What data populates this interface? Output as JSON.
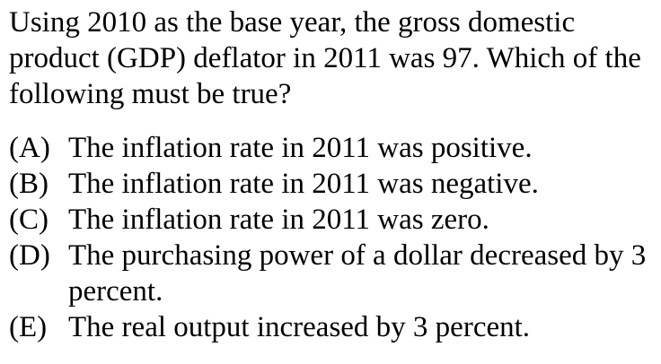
{
  "question": {
    "stem": "Using 2010 as the base year, the gross domestic product (GDP) deflator in 2011 was 97. Which of the following must be true?"
  },
  "options": [
    {
      "letter": "(A)",
      "text": "The inflation rate in 2011 was positive."
    },
    {
      "letter": "(B)",
      "text": "The inflation rate in 2011 was negative."
    },
    {
      "letter": "(C)",
      "text": "The inflation rate in 2011 was zero."
    },
    {
      "letter": "(D)",
      "text": "The purchasing power of a dollar decreased by 3 percent."
    },
    {
      "letter": "(E)",
      "text": "The real output increased by 3 percent."
    }
  ]
}
